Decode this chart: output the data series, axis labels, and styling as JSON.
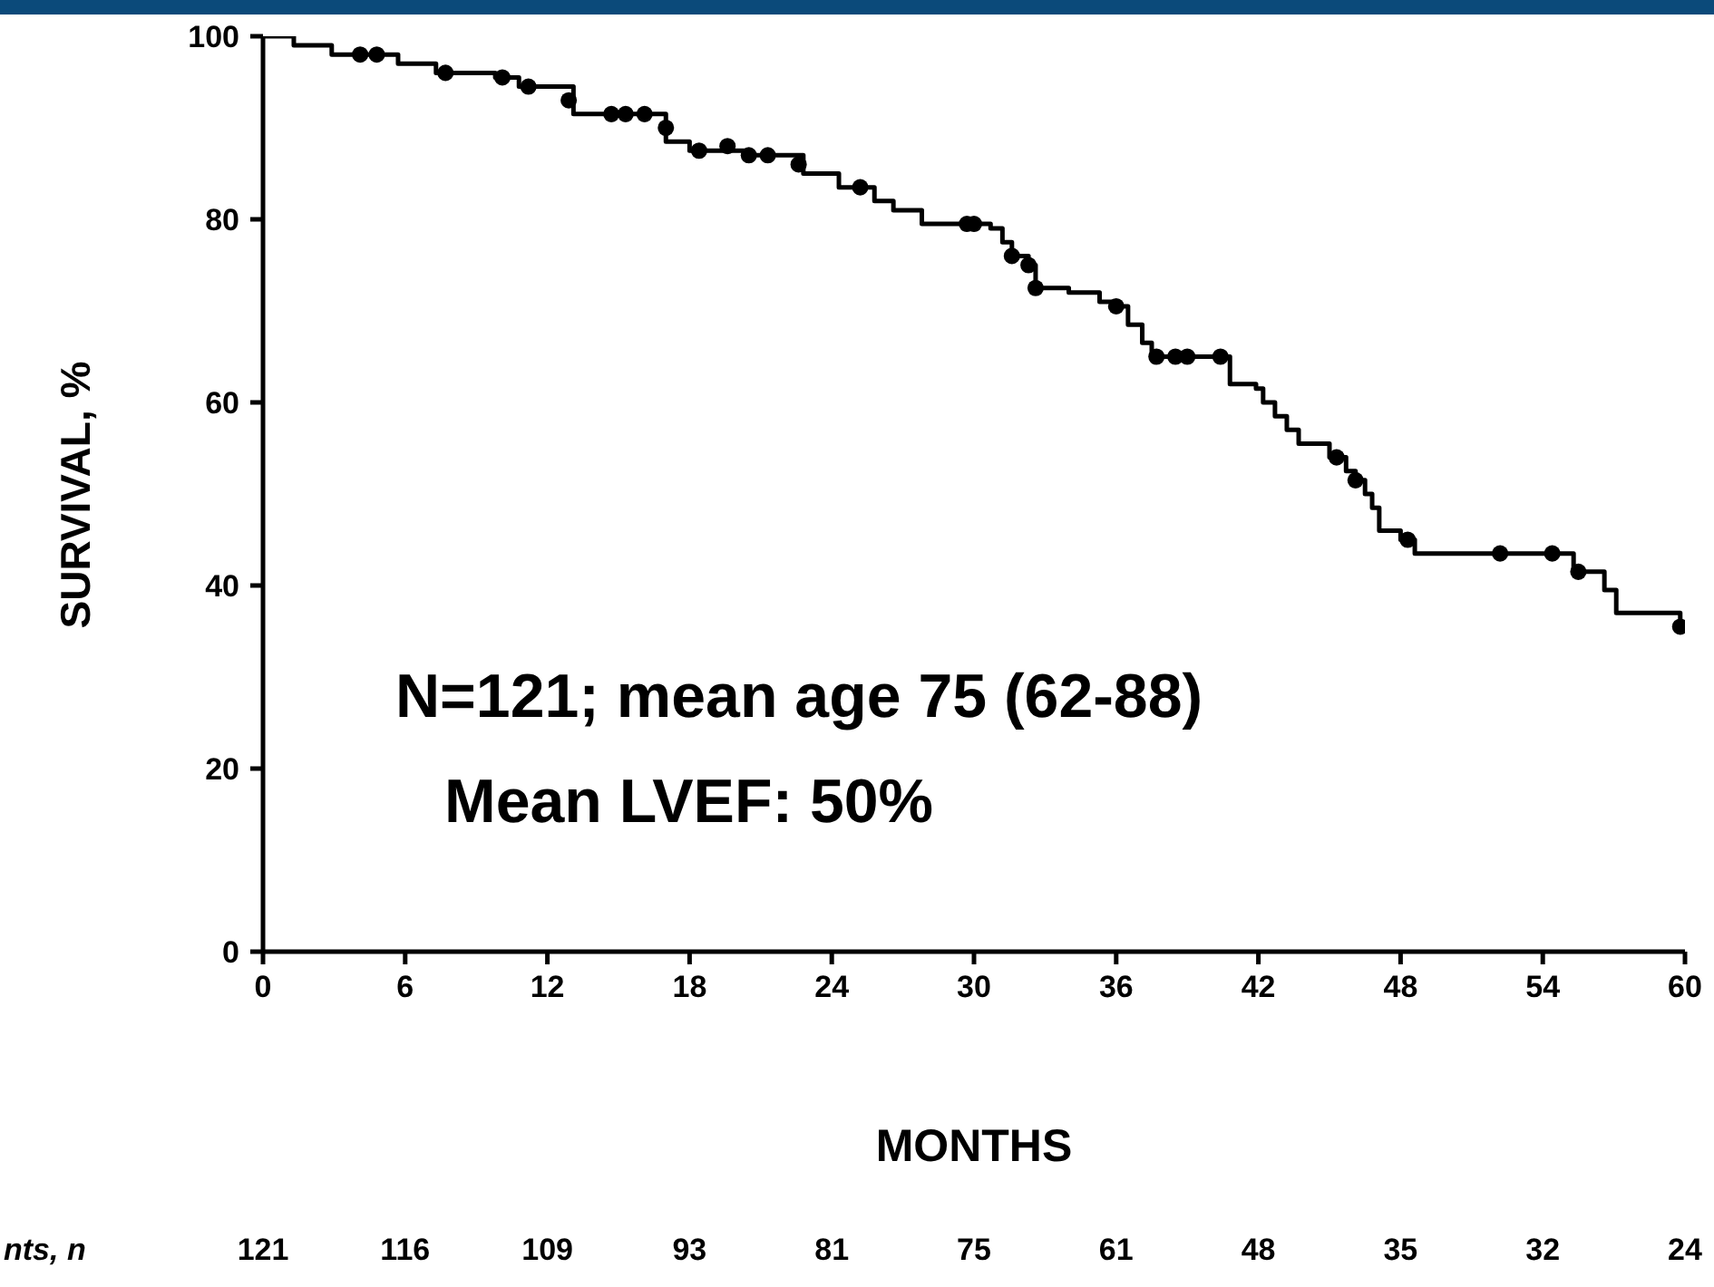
{
  "chart_data": {
    "type": "step",
    "xlabel": "MONTHS",
    "ylabel": "SURVIVAL, %",
    "xlim": [
      0,
      60
    ],
    "xticks": [
      0,
      6,
      12,
      18,
      24,
      30,
      36,
      42,
      48,
      54,
      60
    ],
    "ylim": [
      0,
      100
    ],
    "yticks": [
      0,
      20,
      40,
      60,
      80,
      100
    ],
    "grid": false,
    "series": [
      {
        "color": "#000000",
        "marker": "none",
        "x": [
          0,
          1.3,
          2.9,
          5.7,
          7.3,
          9.8,
          10.8,
          13.1,
          17,
          18,
          20.3,
          22.8,
          24.3,
          25.8,
          26.6,
          27.8,
          30.7,
          31.2,
          31.6,
          32.3,
          32.6,
          34,
          35.3,
          36,
          36.5,
          37.1,
          37.5,
          40.8,
          41.9,
          42.2,
          42.7,
          43.2,
          43.7,
          45,
          45.7,
          46.1,
          46.5,
          46.8,
          47.1,
          48,
          48.6,
          55.3,
          56.6,
          57.1,
          59.8,
          60
        ],
        "values": [
          100,
          99,
          98,
          97,
          96,
          95.5,
          94.5,
          91.5,
          88.5,
          87.5,
          87,
          85,
          83.5,
          82,
          81,
          79.5,
          79,
          77.5,
          76,
          75,
          72.5,
          72,
          71,
          70.5,
          68.5,
          66.5,
          65,
          62,
          61.5,
          60,
          58.5,
          57,
          55.5,
          54,
          52.5,
          51.5,
          50,
          48.5,
          46,
          45,
          43.5,
          41.5,
          39.5,
          37,
          35.5,
          35.5
        ]
      },
      {
        "type": "scatter",
        "color": "#000000",
        "marker": "circle",
        "x": [
          4.1,
          4.8,
          7.7,
          10.1,
          11.2,
          12.9,
          14.7,
          15.3,
          16.1,
          17,
          18.4,
          19.6,
          20.5,
          21.3,
          22.6,
          25.2,
          29.7,
          30,
          31.6,
          32.3,
          32.6,
          36,
          37.7,
          38.5,
          39,
          40.4,
          45.3,
          46.1,
          48.3,
          52.2,
          54.4,
          55.5,
          59.8
        ],
        "values": [
          98,
          98,
          96,
          95.5,
          94.5,
          93,
          91.5,
          91.5,
          91.5,
          90,
          87.5,
          88,
          87,
          87,
          86,
          83.5,
          79.5,
          79.5,
          76,
          75,
          72.5,
          70.5,
          65,
          65,
          65,
          65,
          54,
          51.5,
          45,
          43.5,
          43.5,
          41.5,
          35.5
        ]
      }
    ],
    "annotations": [
      "N=121; mean age 75 (62-88)",
      "Mean LVEF: 50%",
      "nts, n",
      "121",
      "116",
      "109",
      "93",
      "81",
      "75",
      "61",
      "48",
      "35",
      "32",
      "24"
    ]
  }
}
